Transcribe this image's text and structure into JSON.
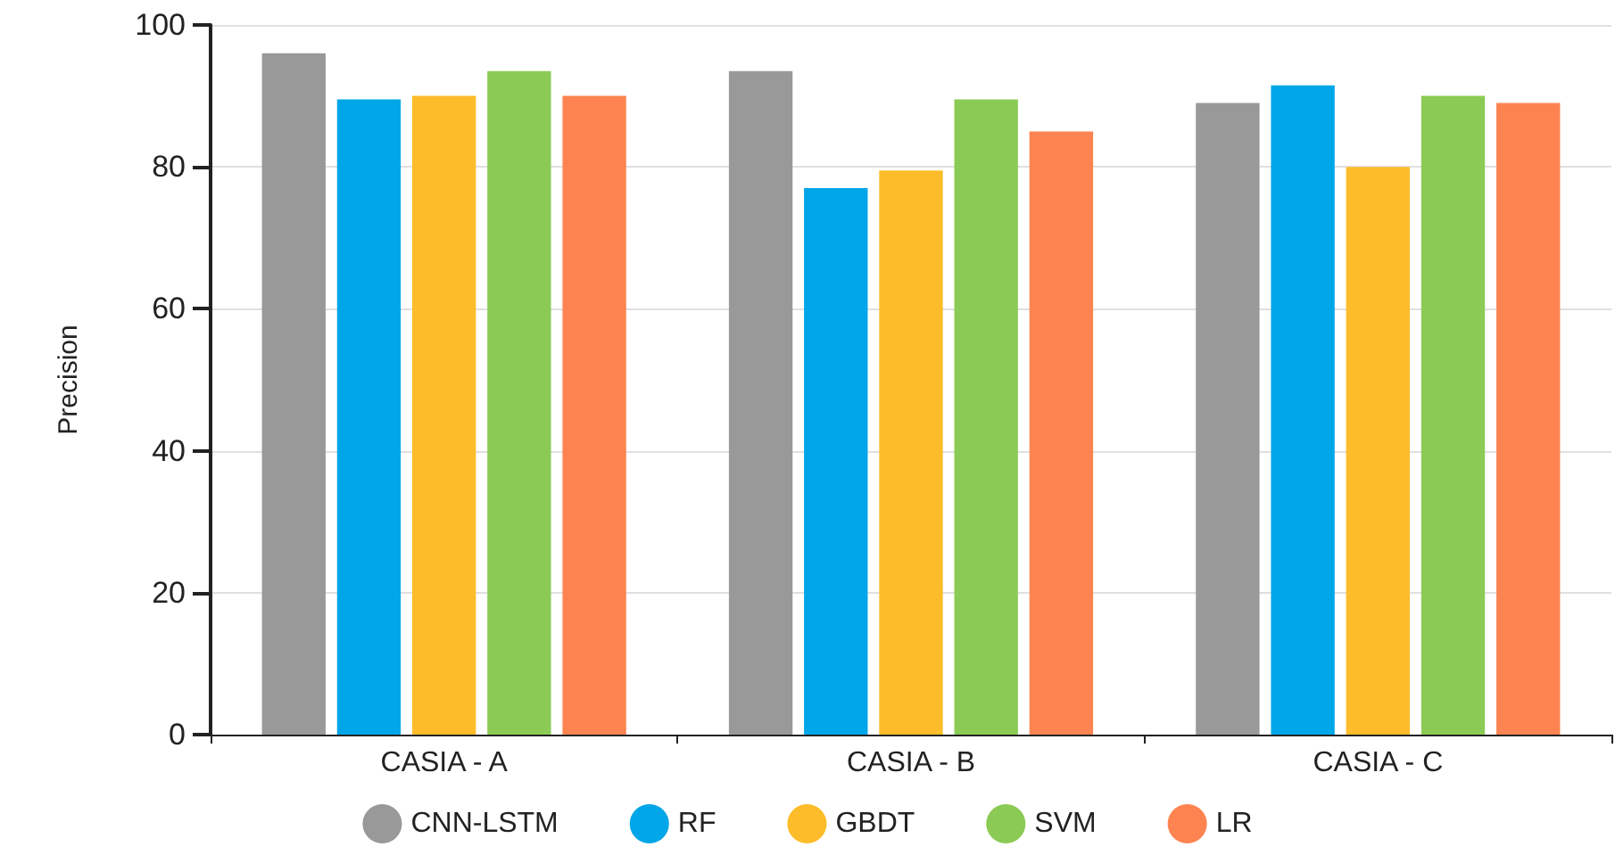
{
  "chart_data": {
    "type": "bar",
    "ylabel": "Precision",
    "categories": [
      "CASIA - A",
      "CASIA - B",
      "CASIA - C"
    ],
    "series": [
      {
        "name": "CNN-LSTM",
        "color": "#999999",
        "values": [
          96,
          93.5,
          89
        ]
      },
      {
        "name": "RF",
        "color": "#00a6e8",
        "values": [
          89.5,
          77,
          91.5
        ]
      },
      {
        "name": "GBDT",
        "color": "#fdbc2a",
        "values": [
          90,
          79.5,
          80
        ]
      },
      {
        "name": "SVM",
        "color": "#8bcb55",
        "values": [
          93.5,
          89.5,
          90
        ]
      },
      {
        "name": "LR",
        "color": "#fd8450",
        "values": [
          90,
          85,
          89
        ]
      }
    ],
    "ylim": [
      0,
      100
    ],
    "yticks": [
      0,
      20,
      40,
      60,
      80,
      100
    ],
    "grid": "y",
    "legend": "bottom"
  }
}
